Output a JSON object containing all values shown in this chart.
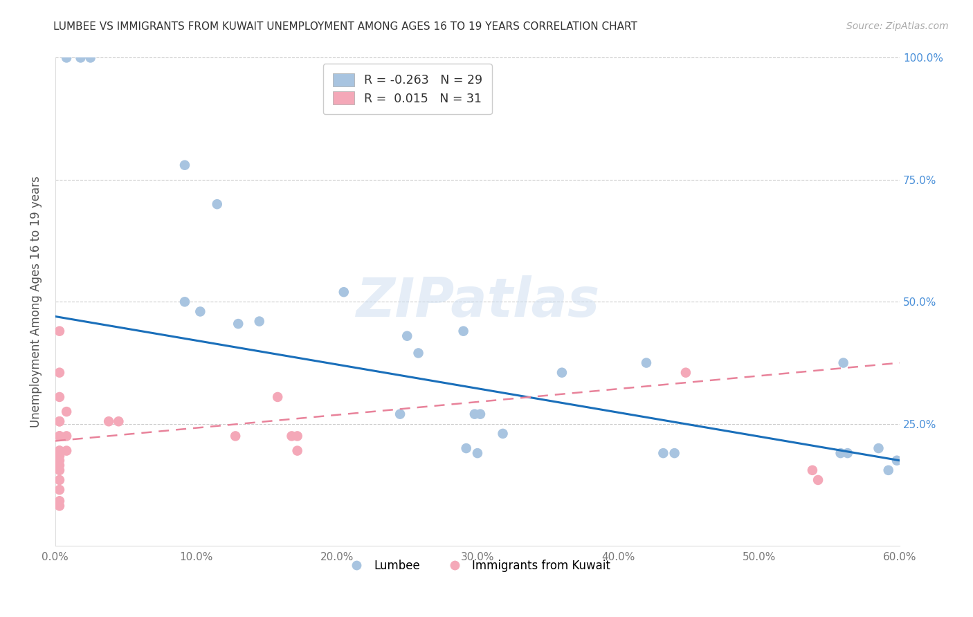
{
  "title": "LUMBEE VS IMMIGRANTS FROM KUWAIT UNEMPLOYMENT AMONG AGES 16 TO 19 YEARS CORRELATION CHART",
  "source": "Source: ZipAtlas.com",
  "ylabel": "Unemployment Among Ages 16 to 19 years",
  "watermark": "ZIPatlas",
  "xlim": [
    0.0,
    0.6
  ],
  "ylim": [
    0.0,
    1.0
  ],
  "xtick_values": [
    0.0,
    0.1,
    0.2,
    0.3,
    0.4,
    0.5,
    0.6
  ],
  "xtick_labels": [
    "0.0%",
    "10.0%",
    "20.0%",
    "30.0%",
    "40.0%",
    "50.0%",
    "60.0%"
  ],
  "ytick_values": [
    0.25,
    0.5,
    0.75,
    1.0
  ],
  "right_ytick_labels": [
    "25.0%",
    "50.0%",
    "75.0%",
    "100.0%"
  ],
  "lumbee_color": "#a8c4e0",
  "kuwait_color": "#f4a8b8",
  "lumbee_R": -0.263,
  "lumbee_N": 29,
  "kuwait_R": 0.015,
  "kuwait_N": 31,
  "lumbee_line_color": "#1a6fba",
  "kuwait_line_color": "#e8829a",
  "legend_label_lumbee": "Lumbee",
  "legend_label_kuwait": "Immigrants from Kuwait",
  "lumbee_x": [
    0.008,
    0.018,
    0.025,
    0.092,
    0.115,
    0.092,
    0.103,
    0.13,
    0.145,
    0.205,
    0.25,
    0.258,
    0.245,
    0.29,
    0.298,
    0.302,
    0.292,
    0.3,
    0.318,
    0.36,
    0.42,
    0.44,
    0.432,
    0.56,
    0.558,
    0.563,
    0.585,
    0.592,
    0.598
  ],
  "lumbee_y": [
    1.0,
    1.0,
    1.0,
    0.78,
    0.7,
    0.5,
    0.48,
    0.455,
    0.46,
    0.52,
    0.43,
    0.395,
    0.27,
    0.44,
    0.27,
    0.27,
    0.2,
    0.19,
    0.23,
    0.355,
    0.375,
    0.19,
    0.19,
    0.375,
    0.19,
    0.19,
    0.2,
    0.155,
    0.175
  ],
  "kuwait_x": [
    0.003,
    0.003,
    0.003,
    0.003,
    0.003,
    0.003,
    0.003,
    0.003,
    0.003,
    0.003,
    0.003,
    0.003,
    0.003,
    0.003,
    0.003,
    0.003,
    0.003,
    0.003,
    0.008,
    0.008,
    0.008,
    0.038,
    0.045,
    0.128,
    0.158,
    0.168,
    0.172,
    0.172,
    0.448,
    0.538,
    0.542
  ],
  "kuwait_y": [
    0.44,
    0.355,
    0.305,
    0.255,
    0.255,
    0.225,
    0.225,
    0.195,
    0.195,
    0.185,
    0.185,
    0.175,
    0.165,
    0.155,
    0.135,
    0.115,
    0.092,
    0.082,
    0.275,
    0.225,
    0.195,
    0.255,
    0.255,
    0.225,
    0.305,
    0.225,
    0.225,
    0.195,
    0.355,
    0.155,
    0.135
  ],
  "lumbee_line_x0": 0.0,
  "lumbee_line_y0": 0.47,
  "lumbee_line_x1": 0.6,
  "lumbee_line_y1": 0.175,
  "kuwait_line_x0": 0.0,
  "kuwait_line_y0": 0.215,
  "kuwait_line_x1": 0.6,
  "kuwait_line_y1": 0.375
}
